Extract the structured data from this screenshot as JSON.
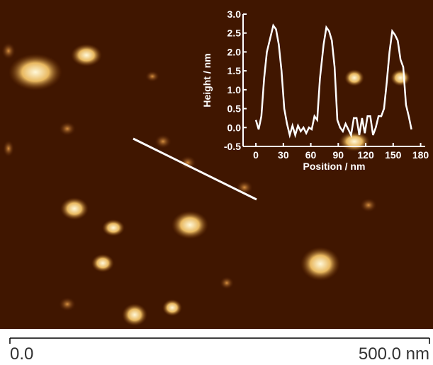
{
  "chart_data": {
    "type": "line",
    "x_label": "Position / nm",
    "y_label": "Height / nm",
    "x": [
      0,
      3,
      6,
      9,
      12,
      15,
      19,
      22,
      25,
      28,
      31,
      34,
      37,
      40,
      43,
      46,
      49,
      52,
      55,
      58,
      61,
      64,
      67,
      70,
      74,
      77,
      80,
      83,
      86,
      89,
      92,
      95,
      98,
      101,
      104,
      107,
      110,
      113,
      116,
      119,
      122,
      125,
      128,
      131,
      134,
      137,
      140,
      143,
      146,
      149,
      152,
      155,
      158,
      161,
      164,
      167,
      170
    ],
    "series": [
      {
        "color": "#ffffff",
        "values": [
          0.2,
          -0.05,
          0.3,
          1.3,
          2.0,
          2.3,
          2.7,
          2.6,
          2.2,
          1.5,
          0.5,
          0.1,
          -0.2,
          0.05,
          -0.2,
          0.05,
          -0.1,
          0.0,
          -0.15,
          0.0,
          -0.05,
          0.3,
          0.2,
          1.3,
          2.2,
          2.65,
          2.55,
          2.3,
          1.6,
          0.2,
          0.0,
          -0.1,
          0.1,
          -0.05,
          -0.2,
          0.25,
          0.25,
          -0.2,
          0.25,
          -0.15,
          0.3,
          0.3,
          -0.2,
          0.0,
          0.3,
          0.3,
          0.5,
          1.2,
          2.0,
          2.55,
          2.45,
          2.3,
          1.8,
          1.6,
          0.6,
          0.3,
          -0.05
        ]
      }
    ],
    "xlim": [
      -14,
      185
    ],
    "ylim": [
      -0.5,
      3.0
    ],
    "xticks": [
      0,
      30,
      60,
      90,
      120,
      150,
      180
    ],
    "yticks": [
      {
        "value": -0.5,
        "label": "-0.5"
      },
      {
        "value": 0,
        "label": "0.0"
      },
      {
        "value": 0.5,
        "label": "0.5"
      },
      {
        "value": 1,
        "label": "1.0"
      },
      {
        "value": 1.5,
        "label": "1.5"
      },
      {
        "value": 2,
        "label": "2.0"
      },
      {
        "value": 2.5,
        "label": "2.5"
      },
      {
        "value": 3,
        "label": "3.0"
      }
    ]
  },
  "scale_bar": {
    "start_label": "0.0",
    "end_label": "500.0 nm"
  }
}
